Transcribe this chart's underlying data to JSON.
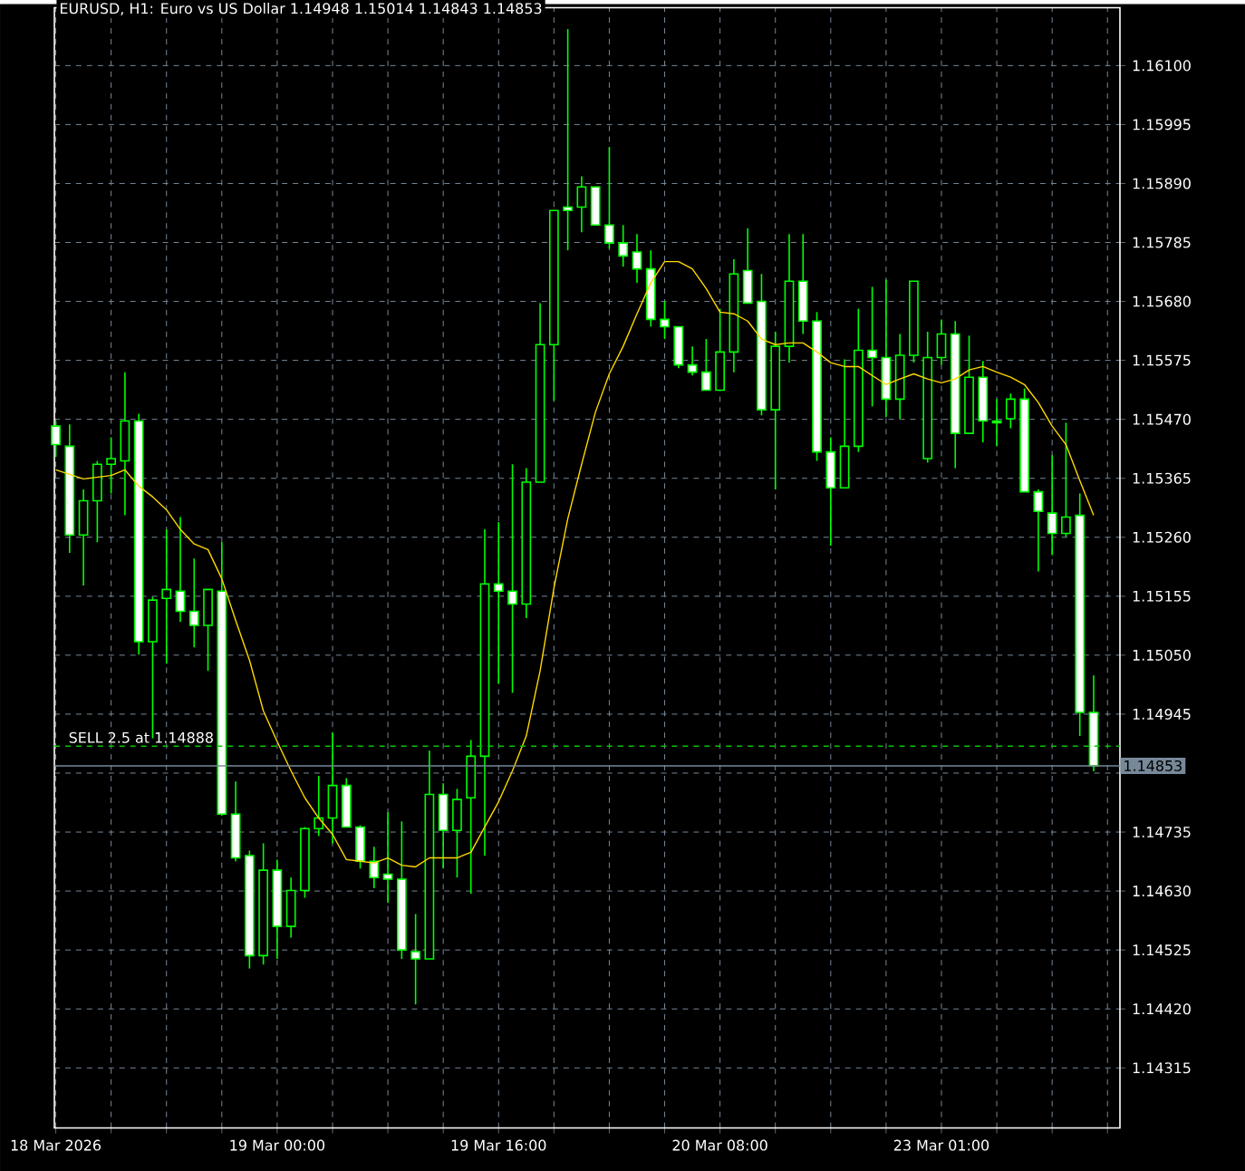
{
  "chart_data": {
    "type": "candlestick",
    "title": "EURUSD, H1:  Euro vs US Dollar  1.14948 1.15014 1.14843 1.14853",
    "categories": [
      "18 Mar 2026",
      null,
      null,
      null,
      null,
      null,
      null,
      null,
      null,
      null,
      null,
      null,
      null,
      null,
      null,
      null,
      "19 Mar 00:00",
      null,
      null,
      null,
      null,
      null,
      null,
      null,
      null,
      null,
      null,
      null,
      null,
      null,
      null,
      null,
      "19 Mar 16:00",
      null,
      null,
      null,
      null,
      null,
      null,
      null,
      null,
      null,
      null,
      null,
      null,
      null,
      null,
      null,
      "20 Mar 08:00",
      null,
      null,
      null,
      null,
      null,
      null,
      null,
      null,
      null,
      null,
      null,
      null,
      null,
      null,
      null,
      "23 Mar 01:00",
      null,
      null,
      null,
      null,
      null,
      null,
      null,
      null,
      null,
      null,
      null
    ],
    "ylim": [
      1.14208,
      1.16203
    ],
    "yticks": [
      {
        "value": 1.161,
        "label": "1.16100"
      },
      {
        "value": 1.15995,
        "label": "1.15995"
      },
      {
        "value": 1.1589,
        "label": "1.15890"
      },
      {
        "value": 1.15785,
        "label": "1.15785"
      },
      {
        "value": 1.1568,
        "label": "1.15680"
      },
      {
        "value": 1.15575,
        "label": "1.15575"
      },
      {
        "value": 1.1547,
        "label": "1.15470"
      },
      {
        "value": 1.15365,
        "label": "1.15365"
      },
      {
        "value": 1.1526,
        "label": "1.15260"
      },
      {
        "value": 1.15155,
        "label": "1.15155"
      },
      {
        "value": 1.1505,
        "label": "1.15050"
      },
      {
        "value": 1.14945,
        "label": "1.14945"
      },
      {
        "value": 1.1484,
        "label": null
      },
      {
        "value": 1.14735,
        "label": "1.14735"
      },
      {
        "value": 1.1463,
        "label": "1.14630"
      },
      {
        "value": 1.14525,
        "label": "1.14525"
      },
      {
        "value": 1.1442,
        "label": "1.14420"
      },
      {
        "value": 1.14315,
        "label": "1.14315"
      }
    ],
    "grid": true,
    "series": [
      {
        "color": "#00ff00",
        "ohlc": [
          [
            1.15458,
            1.15467,
            1.15403,
            1.15425
          ],
          [
            1.15422,
            1.15461,
            1.15232,
            1.15264
          ],
          [
            1.15264,
            1.15345,
            1.15174,
            1.15325
          ],
          [
            1.15325,
            1.15396,
            1.15251,
            1.1539
          ],
          [
            1.1539,
            1.15438,
            1.15338,
            1.154
          ],
          [
            1.15396,
            1.15554,
            1.15299,
            1.15467
          ],
          [
            1.15467,
            1.1548,
            1.15051,
            1.15074
          ],
          [
            1.15074,
            1.15154,
            1.14902,
            1.15148
          ],
          [
            1.15151,
            1.15274,
            1.15035,
            1.15167
          ],
          [
            1.15164,
            1.15296,
            1.15109,
            1.15128
          ],
          [
            1.15128,
            1.15222,
            1.15064,
            1.15103
          ],
          [
            1.15103,
            1.15167,
            1.15022,
            1.15167
          ],
          [
            1.15164,
            1.15251,
            1.14764,
            1.14767
          ],
          [
            1.14767,
            1.14825,
            1.14683,
            1.14689
          ],
          [
            1.14693,
            1.14702,
            1.14492,
            1.14515
          ],
          [
            1.14515,
            1.14715,
            1.14499,
            1.14667
          ],
          [
            1.14667,
            1.14686,
            1.14509,
            1.14567
          ],
          [
            1.14567,
            1.14654,
            1.14547,
            1.14631
          ],
          [
            1.14631,
            1.14744,
            1.14618,
            1.14741
          ],
          [
            1.14741,
            1.14835,
            1.14728,
            1.1476
          ],
          [
            1.1476,
            1.14912,
            1.14715,
            1.14818
          ],
          [
            1.14818,
            1.14831,
            1.14744,
            1.14744
          ],
          [
            1.14744,
            1.14747,
            1.1467,
            1.14683
          ],
          [
            1.14683,
            1.14709,
            1.14635,
            1.14654
          ],
          [
            1.1466,
            1.1477,
            1.14609,
            1.14651
          ],
          [
            1.14651,
            1.14754,
            1.14509,
            1.14525
          ],
          [
            1.14522,
            1.14589,
            1.14428,
            1.14509
          ],
          [
            1.14509,
            1.1488,
            1.14509,
            1.14802
          ],
          [
            1.14802,
            1.14822,
            1.1467,
            1.14738
          ],
          [
            1.14738,
            1.14812,
            1.14654,
            1.14793
          ],
          [
            1.14796,
            1.14899,
            1.14625,
            1.1487
          ],
          [
            1.1487,
            1.15274,
            1.14693,
            1.15177
          ],
          [
            1.15177,
            1.15287,
            1.14999,
            1.15164
          ],
          [
            1.15164,
            1.1539,
            1.14983,
            1.15141
          ],
          [
            1.15141,
            1.15383,
            1.15116,
            1.15358
          ],
          [
            1.15358,
            1.15677,
            1.15358,
            1.15603
          ],
          [
            1.15603,
            1.15842,
            1.15503,
            1.15842
          ],
          [
            1.15848,
            1.16165,
            1.15771,
            1.15842
          ],
          [
            1.15848,
            1.15903,
            1.15803,
            1.15884
          ],
          [
            1.15884,
            1.15884,
            1.15816,
            1.15816
          ],
          [
            1.15816,
            1.15955,
            1.15774,
            1.15784
          ],
          [
            1.15784,
            1.15816,
            1.15742,
            1.15761
          ],
          [
            1.15768,
            1.158,
            1.15713,
            1.15738
          ],
          [
            1.15738,
            1.15771,
            1.15635,
            1.15648
          ],
          [
            1.15648,
            1.1568,
            1.15613,
            1.15635
          ],
          [
            1.15635,
            1.15635,
            1.15561,
            1.15567
          ],
          [
            1.15567,
            1.156,
            1.15548,
            1.15554
          ],
          [
            1.15554,
            1.15613,
            1.15522,
            1.15522
          ],
          [
            1.15522,
            1.15667,
            1.15522,
            1.1559
          ],
          [
            1.1559,
            1.15755,
            1.15554,
            1.15729
          ],
          [
            1.15735,
            1.1581,
            1.15677,
            1.15677
          ],
          [
            1.1568,
            1.15729,
            1.15477,
            1.15487
          ],
          [
            1.15487,
            1.15626,
            1.15345,
            1.156
          ],
          [
            1.156,
            1.158,
            1.15571,
            1.15716
          ],
          [
            1.15716,
            1.158,
            1.15622,
            1.15645
          ],
          [
            1.15645,
            1.15661,
            1.15396,
            1.15412
          ],
          [
            1.15412,
            1.15438,
            1.15245,
            1.15348
          ],
          [
            1.15348,
            1.15577,
            1.15348,
            1.15422
          ],
          [
            1.15422,
            1.15667,
            1.15412,
            1.15593
          ],
          [
            1.15593,
            1.15706,
            1.15493,
            1.1558
          ],
          [
            1.1558,
            1.15719,
            1.15474,
            1.15506
          ],
          [
            1.15506,
            1.15622,
            1.15471,
            1.15584
          ],
          [
            1.15584,
            1.15716,
            1.15571,
            1.15716
          ],
          [
            1.154,
            1.15626,
            1.15393,
            1.1558
          ],
          [
            1.1558,
            1.15648,
            1.15567,
            1.15622
          ],
          [
            1.15622,
            1.15645,
            1.15383,
            1.15445
          ],
          [
            1.15445,
            1.15619,
            1.15445,
            1.15545
          ],
          [
            1.15545,
            1.15574,
            1.15429,
            1.15467
          ],
          [
            1.15467,
            1.15506,
            1.15422,
            1.15464
          ],
          [
            1.15471,
            1.15516,
            1.15454,
            1.15506
          ],
          [
            1.15506,
            1.15525,
            1.15341,
            1.15341
          ],
          [
            1.15341,
            1.15345,
            1.15199,
            1.15306
          ],
          [
            1.15303,
            1.15406,
            1.15228,
            1.15267
          ],
          [
            1.15267,
            1.15464,
            1.15261,
            1.15296
          ],
          [
            1.15299,
            1.15338,
            1.14906,
            1.14948
          ],
          [
            1.14948,
            1.15014,
            1.14843,
            1.14853
          ]
        ]
      },
      {
        "type": "line",
        "color": "#ffd700",
        "values": [
          1.1538,
          1.15372,
          1.15364,
          1.15367,
          1.1537,
          1.1538,
          1.15351,
          1.15332,
          1.15309,
          1.15274,
          1.15248,
          1.15238,
          1.15186,
          1.15112,
          1.15041,
          1.14951,
          1.14896,
          1.14844,
          1.14796,
          1.1476,
          1.14731,
          1.14686,
          1.14683,
          1.1468,
          1.14689,
          1.14676,
          1.14673,
          1.14689,
          1.14689,
          1.14689,
          1.14699,
          1.14744,
          1.14789,
          1.14844,
          1.14906,
          1.15022,
          1.1517,
          1.15293,
          1.1539,
          1.15483,
          1.15551,
          1.156,
          1.15658,
          1.15713,
          1.15751,
          1.15751,
          1.15738,
          1.15703,
          1.15661,
          1.15658,
          1.15645,
          1.15613,
          1.15603,
          1.15606,
          1.15606,
          1.1559,
          1.15571,
          1.15564,
          1.15564,
          1.15548,
          1.15532,
          1.15542,
          1.15551,
          1.15542,
          1.15535,
          1.15542,
          1.15558,
          1.15564,
          1.15554,
          1.15545,
          1.15532,
          1.155,
          1.15458,
          1.15425,
          1.15361,
          1.15299
        ]
      }
    ],
    "ref_lines": [
      {
        "axis": "y",
        "value": 1.14888,
        "label": "SELL 2.5 at 1.14888",
        "color": "#00c800",
        "line_style": "dashed"
      },
      {
        "axis": "y",
        "value": 1.14853,
        "label": "1.14853",
        "color": "#778899",
        "line_style": "solid"
      }
    ]
  }
}
